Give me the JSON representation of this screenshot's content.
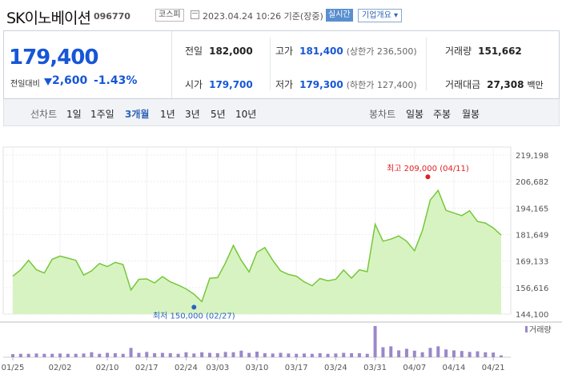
{
  "header": {
    "name": "SK이노베이션",
    "code": "096770",
    "market": "코스피",
    "datetime": "2023.04.24 10:26 기준(장중)",
    "live_badge": "실시간",
    "corp_info": "기업개요 ▾"
  },
  "quote": {
    "price": "179,400",
    "change_label": "전일대비",
    "change": "2,600",
    "change_pct": "-1.43%",
    "prev_close": {
      "label": "전일",
      "value": "182,000"
    },
    "high": {
      "label": "고가",
      "value": "181,400",
      "sub": "(상한가 236,500)"
    },
    "volume": {
      "label": "거래량",
      "value": "151,662"
    },
    "open": {
      "label": "시가",
      "value": "179,700"
    },
    "low": {
      "label": "저가",
      "value": "179,300",
      "sub": "(하한가 127,400)"
    },
    "amount": {
      "label": "거래대금",
      "value": "27,308",
      "unit": "백만"
    }
  },
  "toolbar": {
    "line_label": "선차트",
    "periods": [
      "1일",
      "1주일",
      "3개월",
      "1년",
      "3년",
      "5년",
      "10년"
    ],
    "active_period": "3개월",
    "candle_label": "봉차트",
    "candle_periods": [
      "일봉",
      "주봉",
      "월봉"
    ]
  },
  "chart_data": {
    "type": "area",
    "x": [
      "01/25",
      "01/26",
      "01/27",
      "01/30",
      "01/31",
      "02/01",
      "02/02",
      "02/03",
      "02/06",
      "02/07",
      "02/08",
      "02/09",
      "02/10",
      "02/13",
      "02/14",
      "02/15",
      "02/16",
      "02/17",
      "02/20",
      "02/21",
      "02/22",
      "02/23",
      "02/24",
      "02/27",
      "02/28",
      "03/02",
      "03/03",
      "03/06",
      "03/07",
      "03/08",
      "03/09",
      "03/10",
      "03/13",
      "03/14",
      "03/15",
      "03/16",
      "03/17",
      "03/20",
      "03/21",
      "03/22",
      "03/23",
      "03/24",
      "03/27",
      "03/28",
      "03/29",
      "03/30",
      "03/31",
      "04/03",
      "04/04",
      "04/05",
      "04/06",
      "04/07",
      "04/10",
      "04/11",
      "04/12",
      "04/13",
      "04/14",
      "04/17",
      "04/18",
      "04/19",
      "04/20",
      "04/21",
      "04/24"
    ],
    "y": [
      162000,
      165000,
      169500,
      165000,
      163500,
      170000,
      171500,
      170500,
      169500,
      162500,
      164500,
      168000,
      166500,
      168500,
      167500,
      155500,
      160500,
      160700,
      158800,
      161800,
      159300,
      157800,
      156000,
      153500,
      150000,
      161000,
      161300,
      168200,
      176500,
      169500,
      164000,
      173300,
      175500,
      169500,
      164500,
      162800,
      162000,
      159300,
      157500,
      160900,
      159800,
      160500,
      164900,
      161100,
      165000,
      164100,
      186500,
      178500,
      179500,
      181000,
      178500,
      174000,
      183500,
      198000,
      202500,
      193100,
      191800,
      190600,
      192900,
      187800,
      187100,
      184800,
      181400
    ],
    "y_ticks": [
      "219,198",
      "206,682",
      "194,165",
      "181,649",
      "169,133",
      "156,616",
      "144,100"
    ],
    "ylim": [
      144100,
      219198
    ],
    "x_ticks": [
      "01/25",
      "02/02",
      "02/10",
      "02/17",
      "02/24",
      "03/03",
      "03/10",
      "03/17",
      "03/24",
      "03/31",
      "04/07",
      "04/14",
      "04/21"
    ],
    "volume": [
      10,
      11,
      11,
      12,
      11,
      11,
      12,
      11,
      11,
      12,
      16,
      11,
      14,
      13,
      11,
      30,
      14,
      17,
      13,
      14,
      13,
      11,
      16,
      12,
      16,
      14,
      13,
      17,
      16,
      21,
      14,
      18,
      13,
      12,
      14,
      12,
      11,
      12,
      11,
      13,
      11,
      12,
      14,
      13,
      13,
      11,
      100,
      32,
      35,
      22,
      27,
      21,
      16,
      30,
      35,
      25,
      22,
      20,
      17,
      19,
      16,
      15,
      6
    ],
    "volume_legend": "거래량",
    "max_annotation": {
      "label": "최고",
      "text": "209,000 (04/11)",
      "value": 209000,
      "date": "04/11"
    },
    "min_annotation": {
      "label": "최저",
      "text": "150,000 (02/27)",
      "value": 150000,
      "date": "02/27"
    },
    "colors": {
      "line": "#75c83a",
      "fill": "#d8f3c2",
      "volume": "#9b88c9",
      "max": "#e02020",
      "min": "#2a64c0"
    }
  }
}
